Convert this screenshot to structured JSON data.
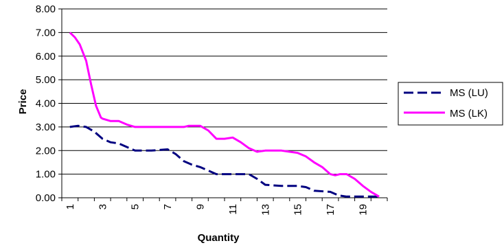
{
  "chart_data": {
    "type": "line",
    "title": "",
    "xlabel": "Quantity",
    "ylabel": "Price",
    "ylim": [
      0,
      8
    ],
    "y_ticks": [
      "0.00",
      "1.00",
      "2.00",
      "3.00",
      "4.00",
      "5.00",
      "6.00",
      "7.00",
      "8.00"
    ],
    "x_ticks": [
      "1",
      "3",
      "5",
      "7",
      "9",
      "11",
      "13",
      "15",
      "17",
      "19"
    ],
    "grid": "horizontal",
    "legend_position": "right",
    "series": [
      {
        "name": "MS (LU)",
        "color": "#000080",
        "style": "dashed",
        "points": [
          [
            1,
            3.0
          ],
          [
            1.5,
            3.05
          ],
          [
            2,
            3.0
          ],
          [
            2.5,
            2.8
          ],
          [
            3,
            2.5
          ],
          [
            3.5,
            2.35
          ],
          [
            4,
            2.3
          ],
          [
            4.5,
            2.15
          ],
          [
            5,
            2.0
          ],
          [
            6,
            2.0
          ],
          [
            7,
            2.05
          ],
          [
            7.5,
            1.85
          ],
          [
            8,
            1.55
          ],
          [
            8.5,
            1.4
          ],
          [
            9,
            1.3
          ],
          [
            9.5,
            1.15
          ],
          [
            10,
            1.0
          ],
          [
            11,
            1.0
          ],
          [
            12,
            1.0
          ],
          [
            12.5,
            0.8
          ],
          [
            13,
            0.55
          ],
          [
            14,
            0.5
          ],
          [
            15,
            0.5
          ],
          [
            15.5,
            0.45
          ],
          [
            16,
            0.3
          ],
          [
            17,
            0.25
          ],
          [
            17.5,
            0.1
          ],
          [
            18,
            0.05
          ],
          [
            19,
            0.05
          ],
          [
            20,
            0.05
          ]
        ]
      },
      {
        "name": "MS (LK)",
        "color": "#ff00ff",
        "style": "solid",
        "points": [
          [
            1,
            7.0
          ],
          [
            1.3,
            6.8
          ],
          [
            1.6,
            6.5
          ],
          [
            2,
            5.8
          ],
          [
            2.3,
            4.8
          ],
          [
            2.6,
            3.9
          ],
          [
            2.9,
            3.4
          ],
          [
            3,
            3.35
          ],
          [
            3.5,
            3.25
          ],
          [
            4,
            3.25
          ],
          [
            4.5,
            3.1
          ],
          [
            5,
            3.0
          ],
          [
            6,
            3.0
          ],
          [
            7,
            3.0
          ],
          [
            8,
            3.0
          ],
          [
            8.3,
            3.05
          ],
          [
            9,
            3.05
          ],
          [
            9.5,
            2.85
          ],
          [
            10,
            2.5
          ],
          [
            10.5,
            2.5
          ],
          [
            11,
            2.55
          ],
          [
            11.5,
            2.35
          ],
          [
            12,
            2.1
          ],
          [
            12.5,
            1.95
          ],
          [
            13,
            2.0
          ],
          [
            14,
            2.0
          ],
          [
            14.5,
            1.95
          ],
          [
            15,
            1.9
          ],
          [
            15.5,
            1.75
          ],
          [
            16,
            1.5
          ],
          [
            16.5,
            1.3
          ],
          [
            17,
            1.0
          ],
          [
            17.3,
            0.95
          ],
          [
            17.6,
            1.0
          ],
          [
            18,
            1.0
          ],
          [
            18.5,
            0.8
          ],
          [
            19,
            0.5
          ],
          [
            19.5,
            0.25
          ],
          [
            20,
            0.05
          ]
        ]
      }
    ]
  }
}
